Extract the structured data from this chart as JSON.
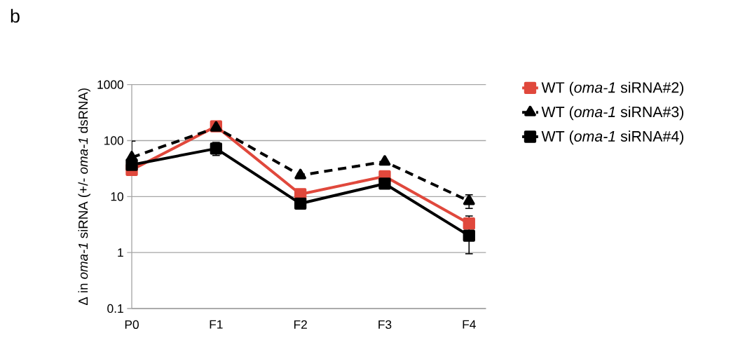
{
  "chart_data": {
    "type": "line",
    "ylabel": "Δ in *oma-1* siRNA (+/- *oma-1* dsRNA)",
    "annotations": [
      "b"
    ],
    "categories": [
      "P0",
      "F1",
      "F2",
      "F3",
      "F4"
    ],
    "series": [
      {
        "name": "WT (*oma-1* siRNA#2)",
        "color": "#e0483c",
        "marker": "square",
        "line_style": "solid",
        "values": [
          30,
          180,
          11,
          23,
          3.3
        ]
      },
      {
        "name": "WT (*oma-1* siRNA#3)",
        "color": "#000000",
        "marker": "triangle",
        "line_style": "dashed",
        "values": [
          50,
          170,
          24,
          42,
          8.3
        ],
        "errors": [
          [
            50,
            100
          ],
          null,
          null,
          null,
          [
            6,
            11
          ]
        ]
      },
      {
        "name": "WT (*oma-1* siRNA#4)",
        "color": "#000000",
        "marker": "square",
        "line_style": "solid",
        "values": [
          37,
          72,
          7.5,
          17,
          2.0
        ],
        "errors": [
          null,
          [
            53,
            95
          ],
          null,
          null,
          [
            0.93,
            4.6
          ]
        ]
      }
    ],
    "log": true,
    "ylim": [
      0.1,
      1000
    ],
    "yticks": [
      0.1,
      1,
      10,
      100,
      1000
    ],
    "grid": "y",
    "legend": "right"
  }
}
